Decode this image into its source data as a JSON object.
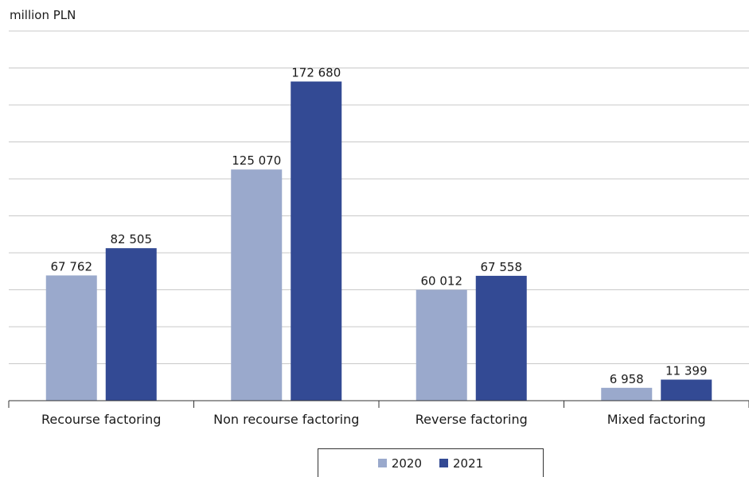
{
  "unit_label": "million PLN",
  "colors": {
    "series_2020": "#9aa9cc",
    "series_2021": "#334a94",
    "grid": "#c8c8c8",
    "axis": "#333333"
  },
  "chart_data": {
    "type": "bar",
    "title": "",
    "ylabel": "million PLN",
    "xlabel": "",
    "categories": [
      "Recourse factoring",
      "Non recourse factoring",
      "Reverse factoring",
      "Mixed factoring"
    ],
    "series": [
      {
        "name": "2020",
        "values": [
          67762,
          125070,
          60012,
          6958
        ],
        "labels": [
          "67 762",
          "125 070",
          "60 012",
          "6 958"
        ]
      },
      {
        "name": "2021",
        "values": [
          82505,
          172680,
          67558,
          11399
        ],
        "labels": [
          "82 505",
          "172 680",
          "67 558",
          "11 399"
        ]
      }
    ],
    "ylim": [
      0,
      200000
    ],
    "grid": true,
    "legend_position": "bottom-center"
  }
}
